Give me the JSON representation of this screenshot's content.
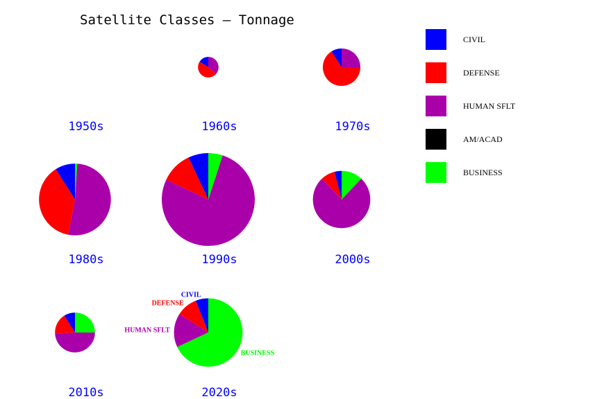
{
  "chart_data": {
    "type": "pie",
    "title": "Satellite Classes – Tonnage",
    "colors": {
      "CIVIL": "#0000ff",
      "DEFENSE": "#ff0000",
      "HUMAN SFLT": "#aa00aa",
      "AM/ACAD": "#000000",
      "BUSINESS": "#00ff00",
      "decade_label": "#0000ff"
    },
    "legend": {
      "placement": "top-right",
      "entries": [
        "CIVIL",
        "DEFENSE",
        "HUMAN SFLT",
        "AM/ACAD",
        "BUSINESS"
      ]
    },
    "categories": [
      "CIVIL",
      "DEFENSE",
      "HUMAN SFLT",
      "AM/ACAD",
      "BUSINESS"
    ],
    "decades": [
      {
        "label": "1950s",
        "values": [
          0,
          0,
          0,
          0,
          0
        ],
        "relative_total": 0
      },
      {
        "label": "1960s",
        "values": [
          16,
          48,
          36,
          0,
          0
        ],
        "relative_total": 0.09
      },
      {
        "label": "1970s",
        "values": [
          9,
          66,
          25,
          0,
          0
        ],
        "relative_total": 0.3
      },
      {
        "label": "1980s",
        "values": [
          9,
          38,
          52,
          0,
          1
        ],
        "relative_total": 1.1
      },
      {
        "label": "1990s",
        "values": [
          7,
          11,
          77,
          0,
          5
        ],
        "relative_total": 1.84
      },
      {
        "label": "2000s",
        "values": [
          4,
          8,
          76,
          0,
          12
        ],
        "relative_total": 0.7
      },
      {
        "label": "2010s",
        "values": [
          9,
          17,
          49,
          0,
          25
        ],
        "relative_total": 0.34
      },
      {
        "label": "2020s",
        "values": [
          6,
          10,
          16,
          0,
          68
        ],
        "relative_total": 1.0,
        "slice_labels": true
      }
    ]
  }
}
